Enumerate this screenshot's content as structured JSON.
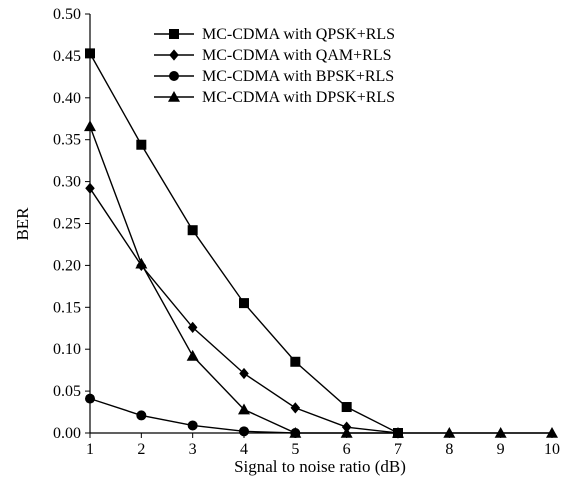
{
  "chart_data": {
    "type": "line",
    "title": "",
    "xlabel": "Signal to noise ratio (dB)",
    "ylabel": "BER",
    "x": [
      1,
      2,
      3,
      4,
      5,
      6,
      7,
      8,
      9,
      10
    ],
    "xlim": [
      1,
      10
    ],
    "ylim": [
      0,
      0.5
    ],
    "xticks": [
      "1",
      "2",
      "3",
      "4",
      "5",
      "6",
      "7",
      "8",
      "9",
      "10"
    ],
    "yticks": [
      "0.00",
      "0.05",
      "0.10",
      "0.15",
      "0.20",
      "0.25",
      "0.30",
      "0.35",
      "0.40",
      "0.45",
      "0.50"
    ],
    "grid": false,
    "legend_position": "top-right",
    "series": [
      {
        "name": "MC-CDMA with QPSK+RLS",
        "marker": "square",
        "x": [
          1,
          2,
          3,
          4,
          5,
          6,
          7
        ],
        "values": [
          0.453,
          0.344,
          0.242,
          0.155,
          0.085,
          0.031,
          0.0
        ]
      },
      {
        "name": "MC-CDMA with QAM+RLS",
        "marker": "diamond",
        "x": [
          1,
          2,
          3,
          4,
          5,
          6,
          7
        ],
        "values": [
          0.292,
          0.2,
          0.126,
          0.071,
          0.03,
          0.007,
          0.0
        ]
      },
      {
        "name": "MC-CDMA with BPSK+RLS",
        "marker": "circle",
        "x": [
          1,
          2,
          3,
          4,
          5
        ],
        "values": [
          0.041,
          0.021,
          0.009,
          0.002,
          0.0
        ]
      },
      {
        "name": "MC-CDMA with DPSK+RLS",
        "marker": "triangle",
        "x": [
          1,
          2,
          3,
          4,
          5,
          6,
          7,
          8,
          9,
          10
        ],
        "values": [
          0.366,
          0.202,
          0.092,
          0.028,
          0.0,
          0.0,
          0.0,
          0.0,
          0.0,
          0.0
        ]
      }
    ]
  }
}
